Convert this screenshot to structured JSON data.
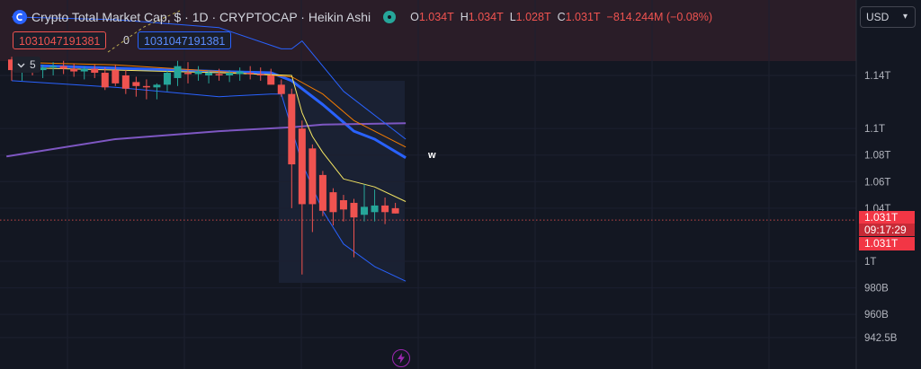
{
  "header": {
    "title": "Crypto Total Market Cap, $ · 1D · CRYPTOCAP · Heikin Ashi",
    "ohlc": [
      {
        "k": "O",
        "v": "1.034T"
      },
      {
        "k": "H",
        "v": "1.034T"
      },
      {
        "k": "L",
        "v": "1.028T"
      },
      {
        "k": "C",
        "v": "1.031T"
      },
      {
        "k": "",
        "v": "−814.244M (−0.08%)"
      }
    ]
  },
  "badges": {
    "red": "1031047191381",
    "mid": "0",
    "blue": "1031047191381"
  },
  "indicator": {
    "label": "5"
  },
  "currency": "USD",
  "price_label": {
    "price": "1.031T",
    "countdown": "09:17:29",
    "price2": "1.031T"
  },
  "marker": "w",
  "colors": {
    "up": "#26a69a",
    "down": "#ef5350",
    "bg": "#131722",
    "ma_blue": "#2962ff",
    "ma_purple": "#7e57c2",
    "ma_orange": "#f57c00",
    "ma_yellow": "#f5e663",
    "band": "#2962ff"
  },
  "chart_data": {
    "type": "candlestick",
    "title": "Crypto Total Market Cap, $ · 1D · CRYPTOCAP · Heikin Ashi",
    "y_unit": "USD",
    "y_ticks": [
      {
        "v": 1140,
        "label": "1.14T"
      },
      {
        "v": 1100,
        "label": "1.1T"
      },
      {
        "v": 1080,
        "label": "1.08T"
      },
      {
        "v": 1060,
        "label": "1.06T"
      },
      {
        "v": 1040,
        "label": "1.04T"
      },
      {
        "v": 1000,
        "label": "1T"
      },
      {
        "v": 980,
        "label": "980B"
      },
      {
        "v": 960,
        "label": "960B"
      },
      {
        "v": 942.5,
        "label": "942.5B"
      }
    ],
    "last_price": 1031,
    "candles": [
      {
        "o": 1152,
        "h": 1154,
        "l": 1136,
        "c": 1144
      },
      {
        "o": 1144,
        "h": 1152,
        "l": 1136,
        "c": 1148
      },
      {
        "o": 1148,
        "h": 1151,
        "l": 1140,
        "c": 1144
      },
      {
        "o": 1144,
        "h": 1148,
        "l": 1138,
        "c": 1146
      },
      {
        "o": 1146,
        "h": 1150,
        "l": 1140,
        "c": 1147
      },
      {
        "o": 1147,
        "h": 1151,
        "l": 1141,
        "c": 1145
      },
      {
        "o": 1145,
        "h": 1149,
        "l": 1139,
        "c": 1143
      },
      {
        "o": 1143,
        "h": 1147,
        "l": 1137,
        "c": 1145
      },
      {
        "o": 1145,
        "h": 1148,
        "l": 1138,
        "c": 1142
      },
      {
        "o": 1142,
        "h": 1146,
        "l": 1129,
        "c": 1131
      },
      {
        "o": 1144,
        "h": 1148,
        "l": 1132,
        "c": 1134
      },
      {
        "o": 1140,
        "h": 1144,
        "l": 1126,
        "c": 1130
      },
      {
        "o": 1135,
        "h": 1139,
        "l": 1124,
        "c": 1132
      },
      {
        "o": 1132,
        "h": 1137,
        "l": 1122,
        "c": 1131
      },
      {
        "o": 1131,
        "h": 1134,
        "l": 1122,
        "c": 1133
      },
      {
        "o": 1133,
        "h": 1144,
        "l": 1128,
        "c": 1142
      },
      {
        "o": 1138,
        "h": 1151,
        "l": 1132,
        "c": 1147
      },
      {
        "o": 1142,
        "h": 1150,
        "l": 1134,
        "c": 1141
      },
      {
        "o": 1141,
        "h": 1147,
        "l": 1136,
        "c": 1143
      },
      {
        "o": 1140,
        "h": 1144,
        "l": 1134,
        "c": 1142
      },
      {
        "o": 1141,
        "h": 1145,
        "l": 1136,
        "c": 1140
      },
      {
        "o": 1140,
        "h": 1144,
        "l": 1135,
        "c": 1142
      },
      {
        "o": 1141,
        "h": 1146,
        "l": 1136,
        "c": 1143
      },
      {
        "o": 1142,
        "h": 1147,
        "l": 1137,
        "c": 1141
      },
      {
        "o": 1141,
        "h": 1146,
        "l": 1136,
        "c": 1140
      },
      {
        "o": 1140,
        "h": 1145,
        "l": 1134,
        "c": 1133
      },
      {
        "o": 1133,
        "h": 1137,
        "l": 1124,
        "c": 1126
      },
      {
        "o": 1126,
        "h": 1130,
        "l": 1040,
        "c": 1073
      },
      {
        "o": 1100,
        "h": 1106,
        "l": 990,
        "c": 1043
      },
      {
        "o": 1085,
        "h": 1088,
        "l": 1022,
        "c": 1043
      },
      {
        "o": 1065,
        "h": 1068,
        "l": 1034,
        "c": 1038
      },
      {
        "o": 1052,
        "h": 1055,
        "l": 1027,
        "c": 1037
      },
      {
        "o": 1046,
        "h": 1050,
        "l": 1030,
        "c": 1039
      },
      {
        "o": 1044,
        "h": 1047,
        "l": 1003,
        "c": 1033
      },
      {
        "o": 1035,
        "h": 1058,
        "l": 1030,
        "c": 1041
      },
      {
        "o": 1037,
        "h": 1054,
        "l": 1030,
        "c": 1042
      },
      {
        "o": 1042,
        "h": 1048,
        "l": 1028,
        "c": 1037
      },
      {
        "o": 1040,
        "h": 1044,
        "l": 1036,
        "c": 1036
      }
    ],
    "lines": [
      {
        "name": "blue MA",
        "color": "#2962ff",
        "width": 3,
        "values": [
          [
            0,
            1148
          ],
          [
            20,
            1143
          ],
          [
            25,
            1142
          ],
          [
            27,
            1136
          ],
          [
            30,
            1118
          ],
          [
            33,
            1098
          ],
          [
            35,
            1092
          ],
          [
            38,
            1078
          ]
        ]
      },
      {
        "name": "purple MA",
        "color": "#7e57c2",
        "width": 2,
        "values": [
          [
            -0.5,
            1079
          ],
          [
            10,
            1092
          ],
          [
            20,
            1098
          ],
          [
            27,
            1101
          ],
          [
            30,
            1103
          ],
          [
            38,
            1104
          ]
        ]
      },
      {
        "name": "orange MA",
        "color": "#f57c00",
        "width": 1,
        "values": [
          [
            0,
            1150
          ],
          [
            10,
            1148
          ],
          [
            20,
            1143
          ],
          [
            27,
            1139
          ],
          [
            30,
            1126
          ],
          [
            33,
            1106
          ],
          [
            38,
            1086
          ]
        ]
      },
      {
        "name": "yellow MA",
        "color": "#f5e663",
        "width": 1,
        "values": [
          [
            0,
            1146
          ],
          [
            20,
            1142
          ],
          [
            27,
            1140
          ],
          [
            28,
            1112
          ],
          [
            29,
            1094
          ],
          [
            30,
            1082
          ],
          [
            32,
            1062
          ],
          [
            35,
            1056
          ],
          [
            38,
            1045
          ]
        ]
      },
      {
        "name": "upper band",
        "color": "#2962ff",
        "width": 1,
        "values": [
          [
            0,
            1184
          ],
          [
            10,
            1182
          ],
          [
            20,
            1176
          ],
          [
            26,
            1160
          ],
          [
            27,
            1160
          ],
          [
            28,
            1166
          ],
          [
            32,
            1128
          ],
          [
            38,
            1092
          ]
        ]
      },
      {
        "name": "lower band",
        "color": "#2962ff",
        "width": 1,
        "values": [
          [
            0,
            1136
          ],
          [
            10,
            1131
          ],
          [
            20,
            1124
          ],
          [
            25,
            1126
          ],
          [
            26,
            1126
          ],
          [
            28,
            1074
          ],
          [
            30,
            1038
          ],
          [
            32,
            1013
          ],
          [
            35,
            996
          ],
          [
            38,
            985
          ]
        ]
      }
    ]
  }
}
